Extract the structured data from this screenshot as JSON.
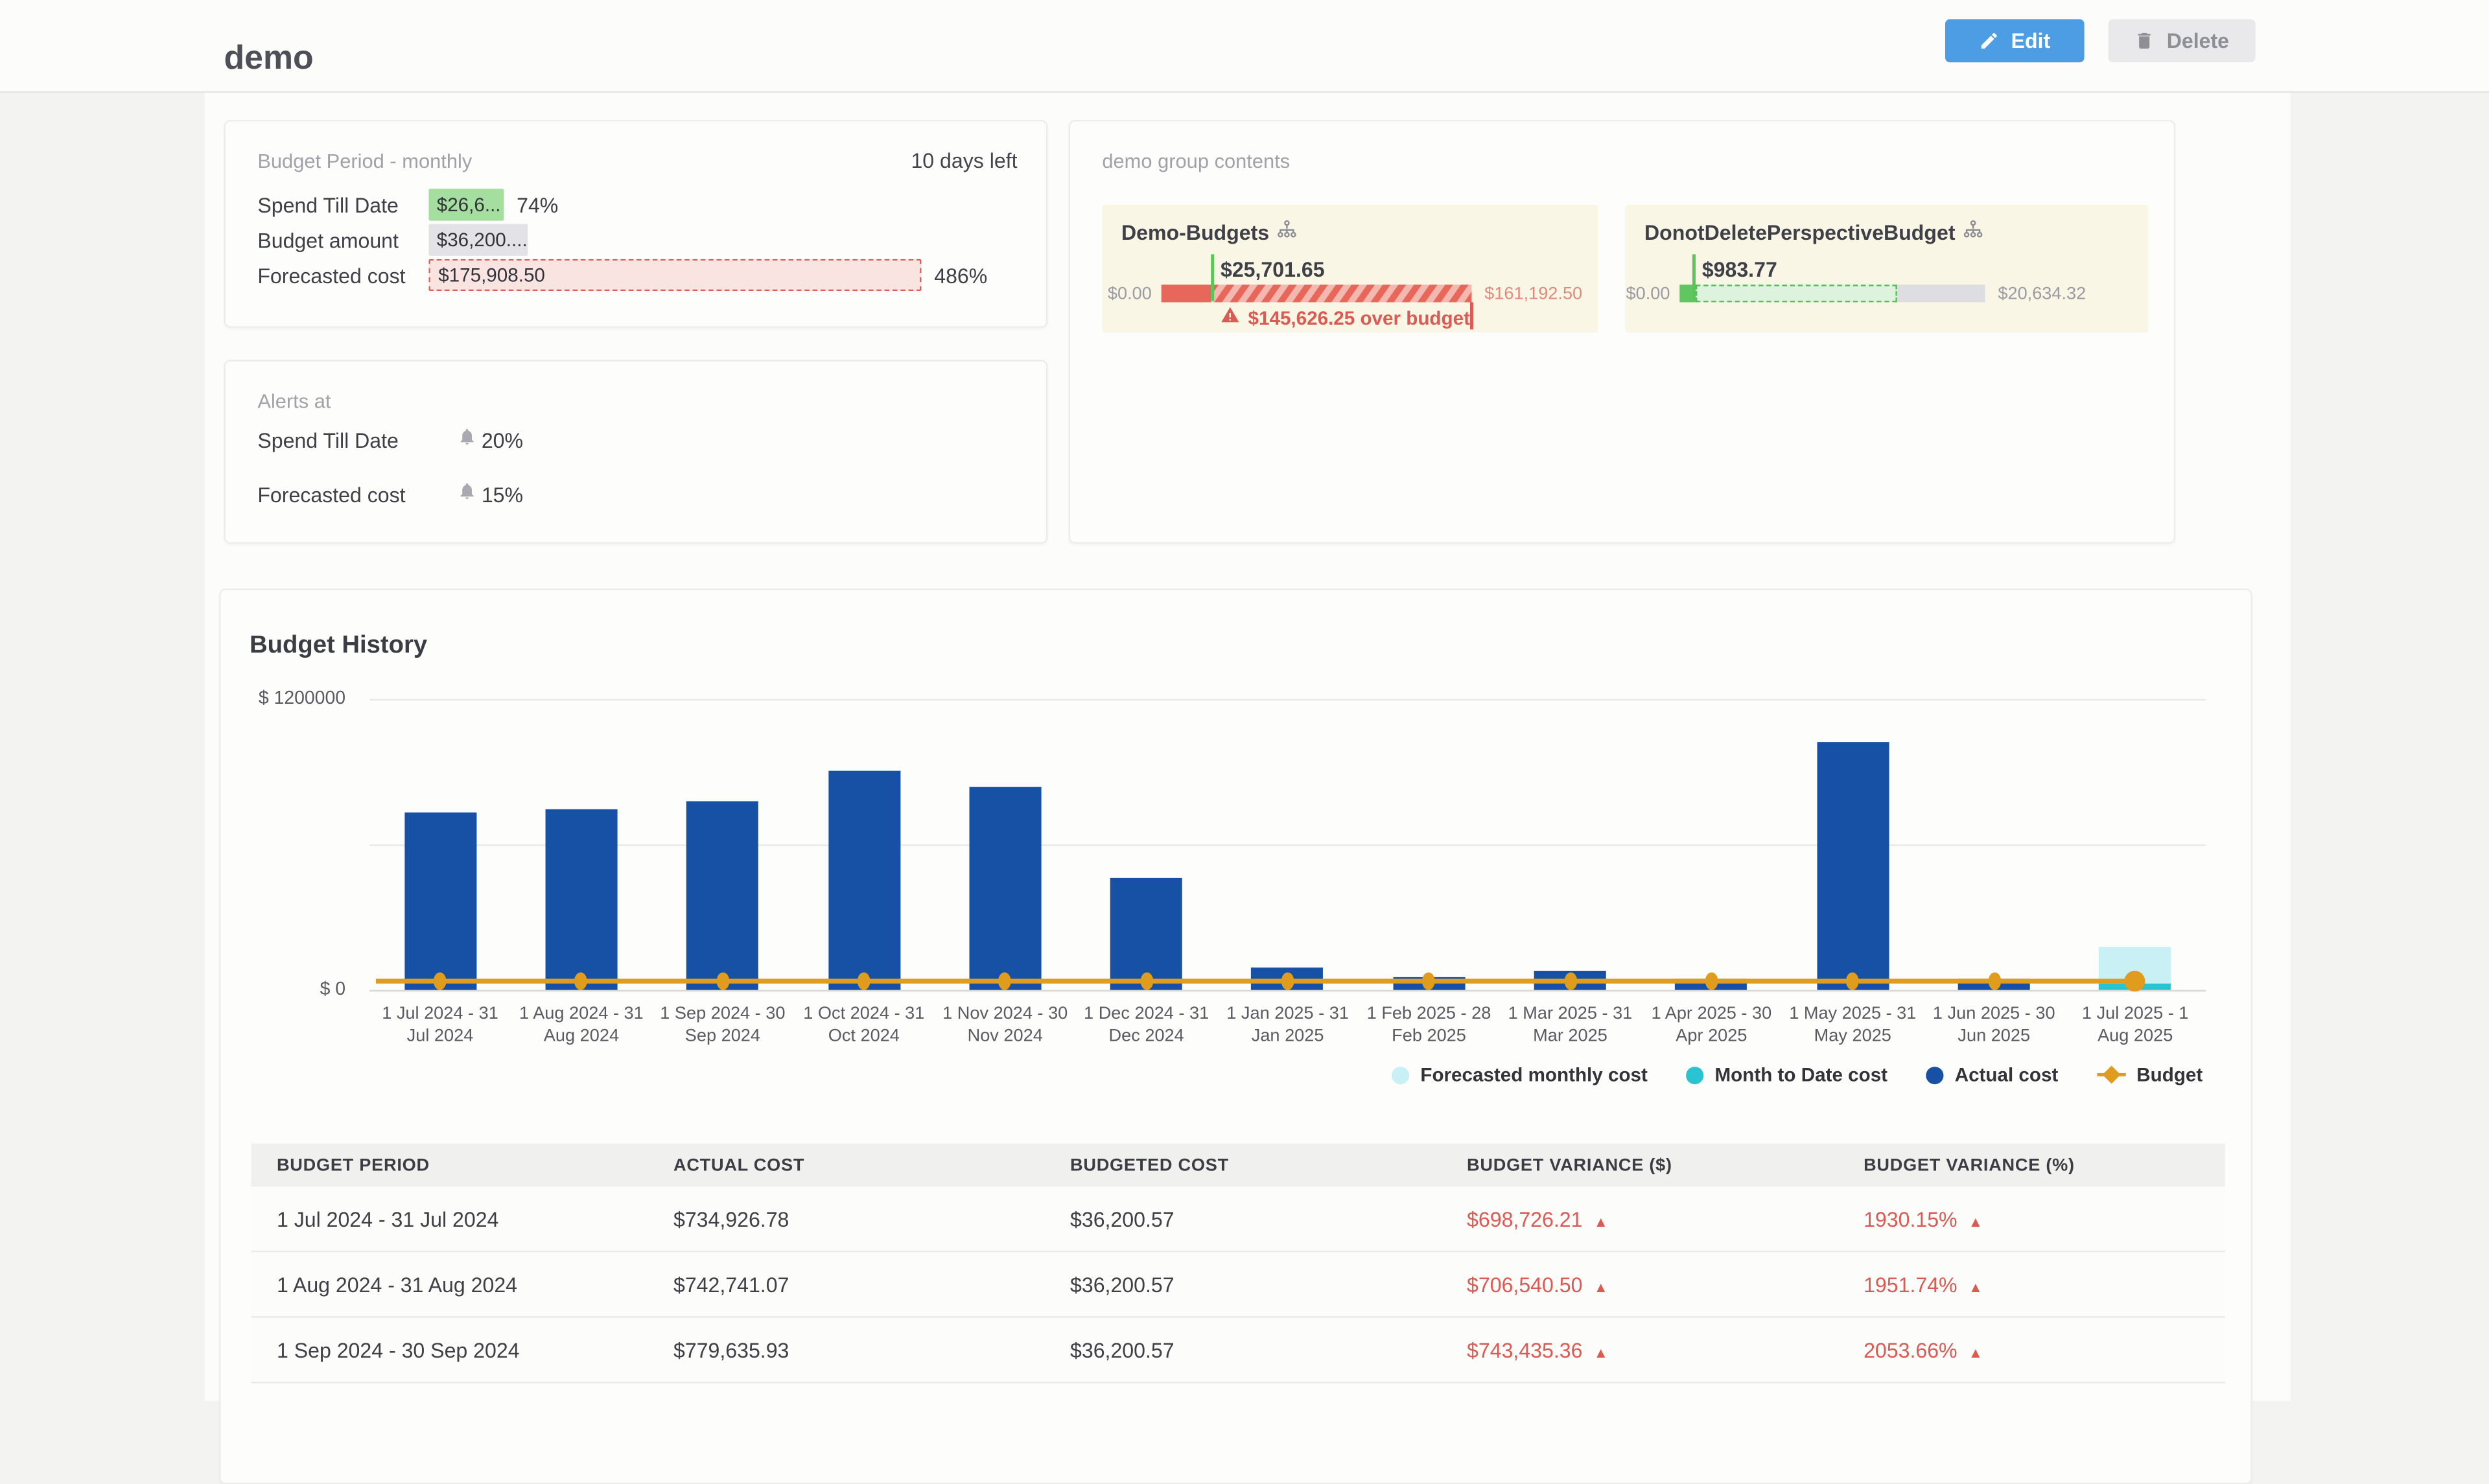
{
  "header": {
    "title": "demo",
    "edit_label": "Edit",
    "delete_label": "Delete"
  },
  "budget_period_card": {
    "title": "Budget Period - monthly",
    "days_left": "10 days left",
    "rows": [
      {
        "label": "Spend Till Date",
        "value": "$26,6...",
        "pct": "74%"
      },
      {
        "label": "Budget amount",
        "value": "$36,200....",
        "pct": ""
      },
      {
        "label": "Forecasted cost",
        "value": "$175,908.50",
        "pct": "486%"
      }
    ]
  },
  "alerts_card": {
    "title": "Alerts at",
    "rows": [
      {
        "label": "Spend Till Date",
        "value": "20%"
      },
      {
        "label": "Forecasted cost",
        "value": "15%"
      }
    ]
  },
  "group_card": {
    "title": "demo group contents",
    "items": [
      {
        "name": "Demo-Budgets",
        "value": "$25,701.65",
        "min": "$0.00",
        "max": "$161,192.50",
        "over_note": "$145,626.25 over budget",
        "solid_pct": 16,
        "status": "over-budget"
      },
      {
        "name": "DonotDeletePerspectiveBudget",
        "value": "$983.77",
        "min": "$0.00",
        "max": "$20,634.32",
        "spend_pct": 5,
        "forecast_pct": 66,
        "status": "under-budget"
      }
    ]
  },
  "chart_data": {
    "type": "bar",
    "title": "Budget History",
    "categories": [
      "1 Jul 2024 - 31\nJul 2024",
      "1 Aug 2024 - 31\nAug 2024",
      "1 Sep 2024 - 30\nSep 2024",
      "1 Oct 2024 - 31\nOct 2024",
      "1 Nov 2024 - 30\nNov 2024",
      "1 Dec 2024 - 31\nDec 2024",
      "1 Jan 2025 - 31\nJan 2025",
      "1 Feb 2025 - 28\nFeb 2025",
      "1 Mar 2025 - 31\nMar 2025",
      "1 Apr 2025 - 30\nApr 2025",
      "1 May 2025 - 31\nMay 2025",
      "1 Jun 2025 - 30\nJun 2025",
      "1 Jul 2025 - 1\nAug 2025"
    ],
    "series": [
      {
        "name": "Actual cost",
        "type": "bar",
        "color": "#1751a5",
        "values": [
          734926.78,
          742741.07,
          779635.93,
          905000,
          835000,
          460000,
          90000,
          50000,
          78000,
          48000,
          1020000,
          48000,
          0
        ]
      },
      {
        "name": "Forecasted monthly cost",
        "type": "bar",
        "color": "#c9f0f4",
        "values": [
          0,
          0,
          0,
          0,
          0,
          0,
          0,
          0,
          0,
          0,
          0,
          0,
          175908.5
        ]
      },
      {
        "name": "Month to Date cost",
        "type": "bar",
        "color": "#29c3d1",
        "values": [
          0,
          0,
          0,
          0,
          0,
          0,
          0,
          0,
          0,
          0,
          0,
          0,
          26600
        ]
      },
      {
        "name": "Budget",
        "type": "line",
        "color": "#e09c1c",
        "values": [
          36200.57,
          36200.57,
          36200.57,
          36200.57,
          36200.57,
          36200.57,
          36200.57,
          36200.57,
          36200.57,
          36200.57,
          36200.57,
          36200.57,
          36200.57
        ]
      }
    ],
    "ylim": [
      0,
      1200000
    ],
    "yticks": [
      {
        "value": 1200000,
        "label": "$ 1200000"
      },
      {
        "value": 0,
        "label": "$ 0"
      }
    ],
    "gridline_values": [
      1200000,
      600000,
      0
    ],
    "legend": [
      "Forecasted monthly cost",
      "Month to Date cost",
      "Actual cost",
      "Budget"
    ],
    "legend_position": "bottom-right"
  },
  "table": {
    "headers": [
      "BUDGET PERIOD",
      "ACTUAL COST",
      "BUDGETED COST",
      "BUDGET VARIANCE ($)",
      "BUDGET VARIANCE (%)"
    ],
    "rows": [
      {
        "period": "1 Jul 2024 - 31 Jul 2024",
        "actual": "$734,926.78",
        "budgeted": "$36,200.57",
        "variance_usd": "$698,726.21",
        "variance_pct": "1930.15%"
      },
      {
        "period": "1 Aug 2024 - 31 Aug 2024",
        "actual": "$742,741.07",
        "budgeted": "$36,200.57",
        "variance_usd": "$706,540.50",
        "variance_pct": "1951.74%"
      },
      {
        "period": "1 Sep 2024 - 30 Sep 2024",
        "actual": "$779,635.93",
        "budgeted": "$36,200.57",
        "variance_usd": "$743,435.36",
        "variance_pct": "2053.66%"
      }
    ]
  },
  "colors": {
    "accent_blue": "#4c9de4",
    "bar_blue": "#1751a5",
    "teal": "#29c3d1",
    "pale_cyan": "#c9f0f4",
    "budget_orange": "#e09c1c",
    "alert_red": "#dc5a52",
    "ok_green": "#5fc75f"
  }
}
